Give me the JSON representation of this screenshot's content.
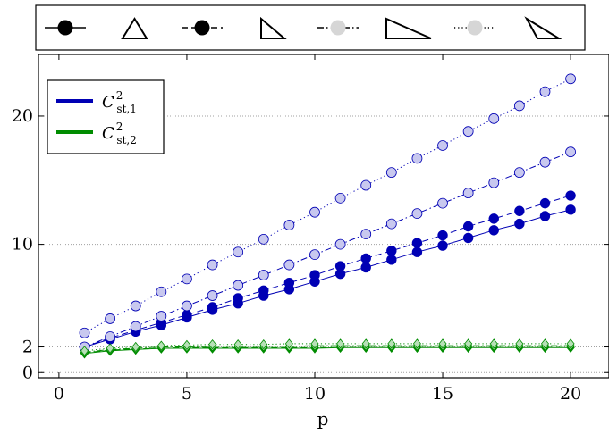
{
  "chart_data": {
    "type": "line",
    "title": "",
    "xlabel": "p",
    "ylabel": "",
    "xlim": [
      -0.8,
      21.5
    ],
    "ylim": [
      -0.4,
      24.8
    ],
    "xticks": [
      0,
      5,
      10,
      15,
      20
    ],
    "yticks": [
      0,
      2,
      10,
      20
    ],
    "grid": "horizontal-dotted",
    "legend_placement": "top-left",
    "colors": {
      "blue": "#0000b4",
      "blue_light": "#c8c8ef",
      "green": "#008c00",
      "green_light": "#b8e0b8"
    },
    "legend_top_style_entries": [
      {
        "line": "solid",
        "marker": "filled-circle"
      },
      {
        "line": "",
        "marker": "open-triangle"
      },
      {
        "line": "dashed",
        "marker": "filled-circle"
      },
      {
        "line": "",
        "marker": "open-triangle"
      },
      {
        "line": "dashdot",
        "marker": "light-circle"
      },
      {
        "line": "",
        "marker": "open-triangle"
      },
      {
        "line": "dotted",
        "marker": "light-circle"
      },
      {
        "line": "",
        "marker": "open-triangle"
      }
    ],
    "legend_entries": [
      {
        "label": "C",
        "sup": "2",
        "sub": "st,1",
        "color": "#0000b4"
      },
      {
        "label": "C",
        "sup": "2",
        "sub": "st,2",
        "color": "#008c00"
      }
    ],
    "x": [
      1,
      2,
      3,
      4,
      5,
      6,
      7,
      8,
      9,
      10,
      11,
      12,
      13,
      14,
      15,
      16,
      17,
      18,
      19,
      20
    ],
    "series": [
      {
        "group": "st1",
        "line": "solid",
        "marker": "filled-circle",
        "values": [
          2.0,
          2.6,
          3.2,
          3.7,
          4.3,
          4.9,
          5.4,
          6.0,
          6.5,
          7.1,
          7.7,
          8.2,
          8.8,
          9.4,
          9.9,
          10.5,
          11.1,
          11.6,
          12.2,
          12.7
        ]
      },
      {
        "group": "st1",
        "line": "dashed",
        "marker": "filled-circle",
        "values": [
          2.0,
          2.7,
          3.3,
          3.9,
          4.5,
          5.1,
          5.8,
          6.4,
          7.0,
          7.6,
          8.3,
          8.9,
          9.5,
          10.1,
          10.7,
          11.4,
          12.0,
          12.6,
          13.2,
          13.8
        ]
      },
      {
        "group": "st1",
        "line": "dashdot",
        "marker": "light-circle",
        "values": [
          2.0,
          2.8,
          3.6,
          4.4,
          5.2,
          6.0,
          6.8,
          7.6,
          8.4,
          9.2,
          10.0,
          10.8,
          11.6,
          12.4,
          13.2,
          14.0,
          14.8,
          15.6,
          16.4,
          17.2
        ]
      },
      {
        "group": "st1",
        "line": "dotted",
        "marker": "light-circle",
        "values": [
          3.1,
          4.2,
          5.2,
          6.3,
          7.3,
          8.4,
          9.4,
          10.4,
          11.5,
          12.5,
          13.6,
          14.6,
          15.6,
          16.7,
          17.7,
          18.8,
          19.8,
          20.8,
          21.9,
          22.9
        ]
      },
      {
        "group": "st2",
        "line": "solid",
        "marker": "filled-diamond",
        "values": [
          1.5,
          1.7,
          1.8,
          1.9,
          1.9,
          1.9,
          1.9,
          1.9,
          1.9,
          1.9,
          1.95,
          1.95,
          1.95,
          1.95,
          1.95,
          1.95,
          1.95,
          1.95,
          1.95,
          1.95
        ]
      },
      {
        "group": "st2",
        "line": "dashed",
        "marker": "filled-diamond",
        "values": [
          1.55,
          1.75,
          1.85,
          1.9,
          1.95,
          1.95,
          1.95,
          1.95,
          1.95,
          1.95,
          1.97,
          1.97,
          1.97,
          1.97,
          1.97,
          1.97,
          1.97,
          1.97,
          1.97,
          1.97
        ]
      },
      {
        "group": "st2",
        "line": "dashdot",
        "marker": "light-diamond",
        "values": [
          1.6,
          1.8,
          1.9,
          2.0,
          2.0,
          2.05,
          2.05,
          2.05,
          2.05,
          2.1,
          2.1,
          2.1,
          2.1,
          2.1,
          2.1,
          2.1,
          2.1,
          2.1,
          2.1,
          2.1
        ]
      },
      {
        "group": "st2",
        "line": "dotted",
        "marker": "light-diamond",
        "values": [
          1.7,
          1.9,
          2.0,
          2.1,
          2.15,
          2.2,
          2.2,
          2.2,
          2.25,
          2.25,
          2.25,
          2.25,
          2.25,
          2.25,
          2.25,
          2.25,
          2.25,
          2.25,
          2.25,
          2.25
        ]
      }
    ]
  }
}
